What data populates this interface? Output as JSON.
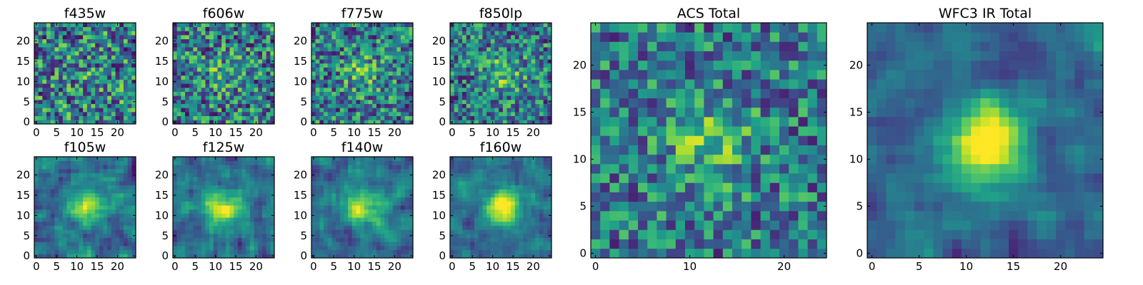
{
  "chart_data": [
    {
      "type": "heatmap",
      "title": "f435w",
      "size": 25,
      "colormap": "viridis",
      "seed": 11,
      "peak": 0.05,
      "noise": 0.4,
      "smooth": 0,
      "center": [
        12,
        12
      ],
      "xticks": [
        0,
        5,
        10,
        15,
        20
      ],
      "yticks": [
        0,
        5,
        10,
        15,
        20
      ],
      "xlim": [
        0,
        24
      ],
      "ylim": [
        0,
        24
      ]
    },
    {
      "type": "heatmap",
      "title": "f606w",
      "size": 25,
      "colormap": "viridis",
      "seed": 23,
      "peak": 0.18,
      "noise": 0.38,
      "smooth": 0,
      "center": [
        12,
        12
      ],
      "xticks": [
        0,
        5,
        10,
        15,
        20
      ],
      "yticks": [
        0,
        5,
        10,
        15,
        20
      ],
      "xlim": [
        0,
        24
      ],
      "ylim": [
        0,
        24
      ]
    },
    {
      "type": "heatmap",
      "title": "f775w",
      "size": 25,
      "colormap": "viridis",
      "seed": 37,
      "peak": 0.25,
      "noise": 0.36,
      "smooth": 0,
      "center": [
        12,
        12
      ],
      "xticks": [
        0,
        5,
        10,
        15,
        20
      ],
      "yticks": [
        0,
        5,
        10,
        15,
        20
      ],
      "xlim": [
        0,
        24
      ],
      "ylim": [
        0,
        24
      ]
    },
    {
      "type": "heatmap",
      "title": "f850lp",
      "size": 25,
      "colormap": "viridis",
      "seed": 41,
      "peak": 0.3,
      "noise": 0.35,
      "smooth": 0,
      "center": [
        13,
        12
      ],
      "xticks": [
        0,
        5,
        10,
        15,
        20
      ],
      "yticks": [
        0,
        5,
        10,
        15,
        20
      ],
      "xlim": [
        0,
        24
      ],
      "ylim": [
        0,
        24
      ]
    },
    {
      "type": "heatmap",
      "title": "f105w",
      "size": 25,
      "colormap": "viridis",
      "seed": 53,
      "peak": 0.45,
      "noise": 0.3,
      "smooth": 1,
      "center": [
        13,
        12
      ],
      "xticks": [
        0,
        5,
        10,
        15,
        20
      ],
      "yticks": [
        0,
        5,
        10,
        15,
        20
      ],
      "xlim": [
        0,
        24
      ],
      "ylim": [
        0,
        24
      ]
    },
    {
      "type": "heatmap",
      "title": "f125w",
      "size": 25,
      "colormap": "viridis",
      "seed": 67,
      "peak": 0.5,
      "noise": 0.28,
      "smooth": 1,
      "center": [
        12,
        12
      ],
      "xticks": [
        0,
        5,
        10,
        15,
        20
      ],
      "yticks": [
        0,
        5,
        10,
        15,
        20
      ],
      "xlim": [
        0,
        24
      ],
      "ylim": [
        0,
        24
      ]
    },
    {
      "type": "heatmap",
      "title": "f140w",
      "size": 25,
      "colormap": "viridis",
      "seed": 79,
      "peak": 0.55,
      "noise": 0.27,
      "smooth": 1,
      "center": [
        12,
        12
      ],
      "xticks": [
        0,
        5,
        10,
        15,
        20
      ],
      "yticks": [
        0,
        5,
        10,
        15,
        20
      ],
      "xlim": [
        0,
        24
      ],
      "ylim": [
        0,
        24
      ]
    },
    {
      "type": "heatmap",
      "title": "f160w",
      "size": 25,
      "colormap": "viridis",
      "seed": 83,
      "peak": 0.75,
      "noise": 0.25,
      "smooth": 1,
      "center": [
        13,
        12
      ],
      "xticks": [
        0,
        5,
        10,
        15,
        20
      ],
      "yticks": [
        0,
        5,
        10,
        15,
        20
      ],
      "xlim": [
        0,
        24
      ],
      "ylim": [
        0,
        24
      ]
    },
    {
      "type": "heatmap",
      "title": "ACS Total",
      "size": 25,
      "colormap": "viridis",
      "seed": 97,
      "peak": 0.3,
      "noise": 0.32,
      "smooth": 0,
      "center": [
        12,
        12
      ],
      "xticks": [
        0,
        10,
        20
      ],
      "yticks": [
        0,
        5,
        10,
        15,
        20
      ],
      "xlim": [
        0,
        24
      ],
      "ylim": [
        0,
        24
      ]
    },
    {
      "type": "heatmap",
      "title": "WFC3 IR Total",
      "size": 25,
      "colormap": "viridis",
      "seed": 101,
      "peak": 0.7,
      "noise": 0.22,
      "smooth": 1,
      "center": [
        12,
        12
      ],
      "xticks": [
        0,
        5,
        10,
        15,
        20
      ],
      "yticks": [
        0,
        5,
        10,
        15,
        20
      ],
      "xlim": [
        0,
        24
      ],
      "ylim": [
        0,
        24
      ]
    }
  ]
}
